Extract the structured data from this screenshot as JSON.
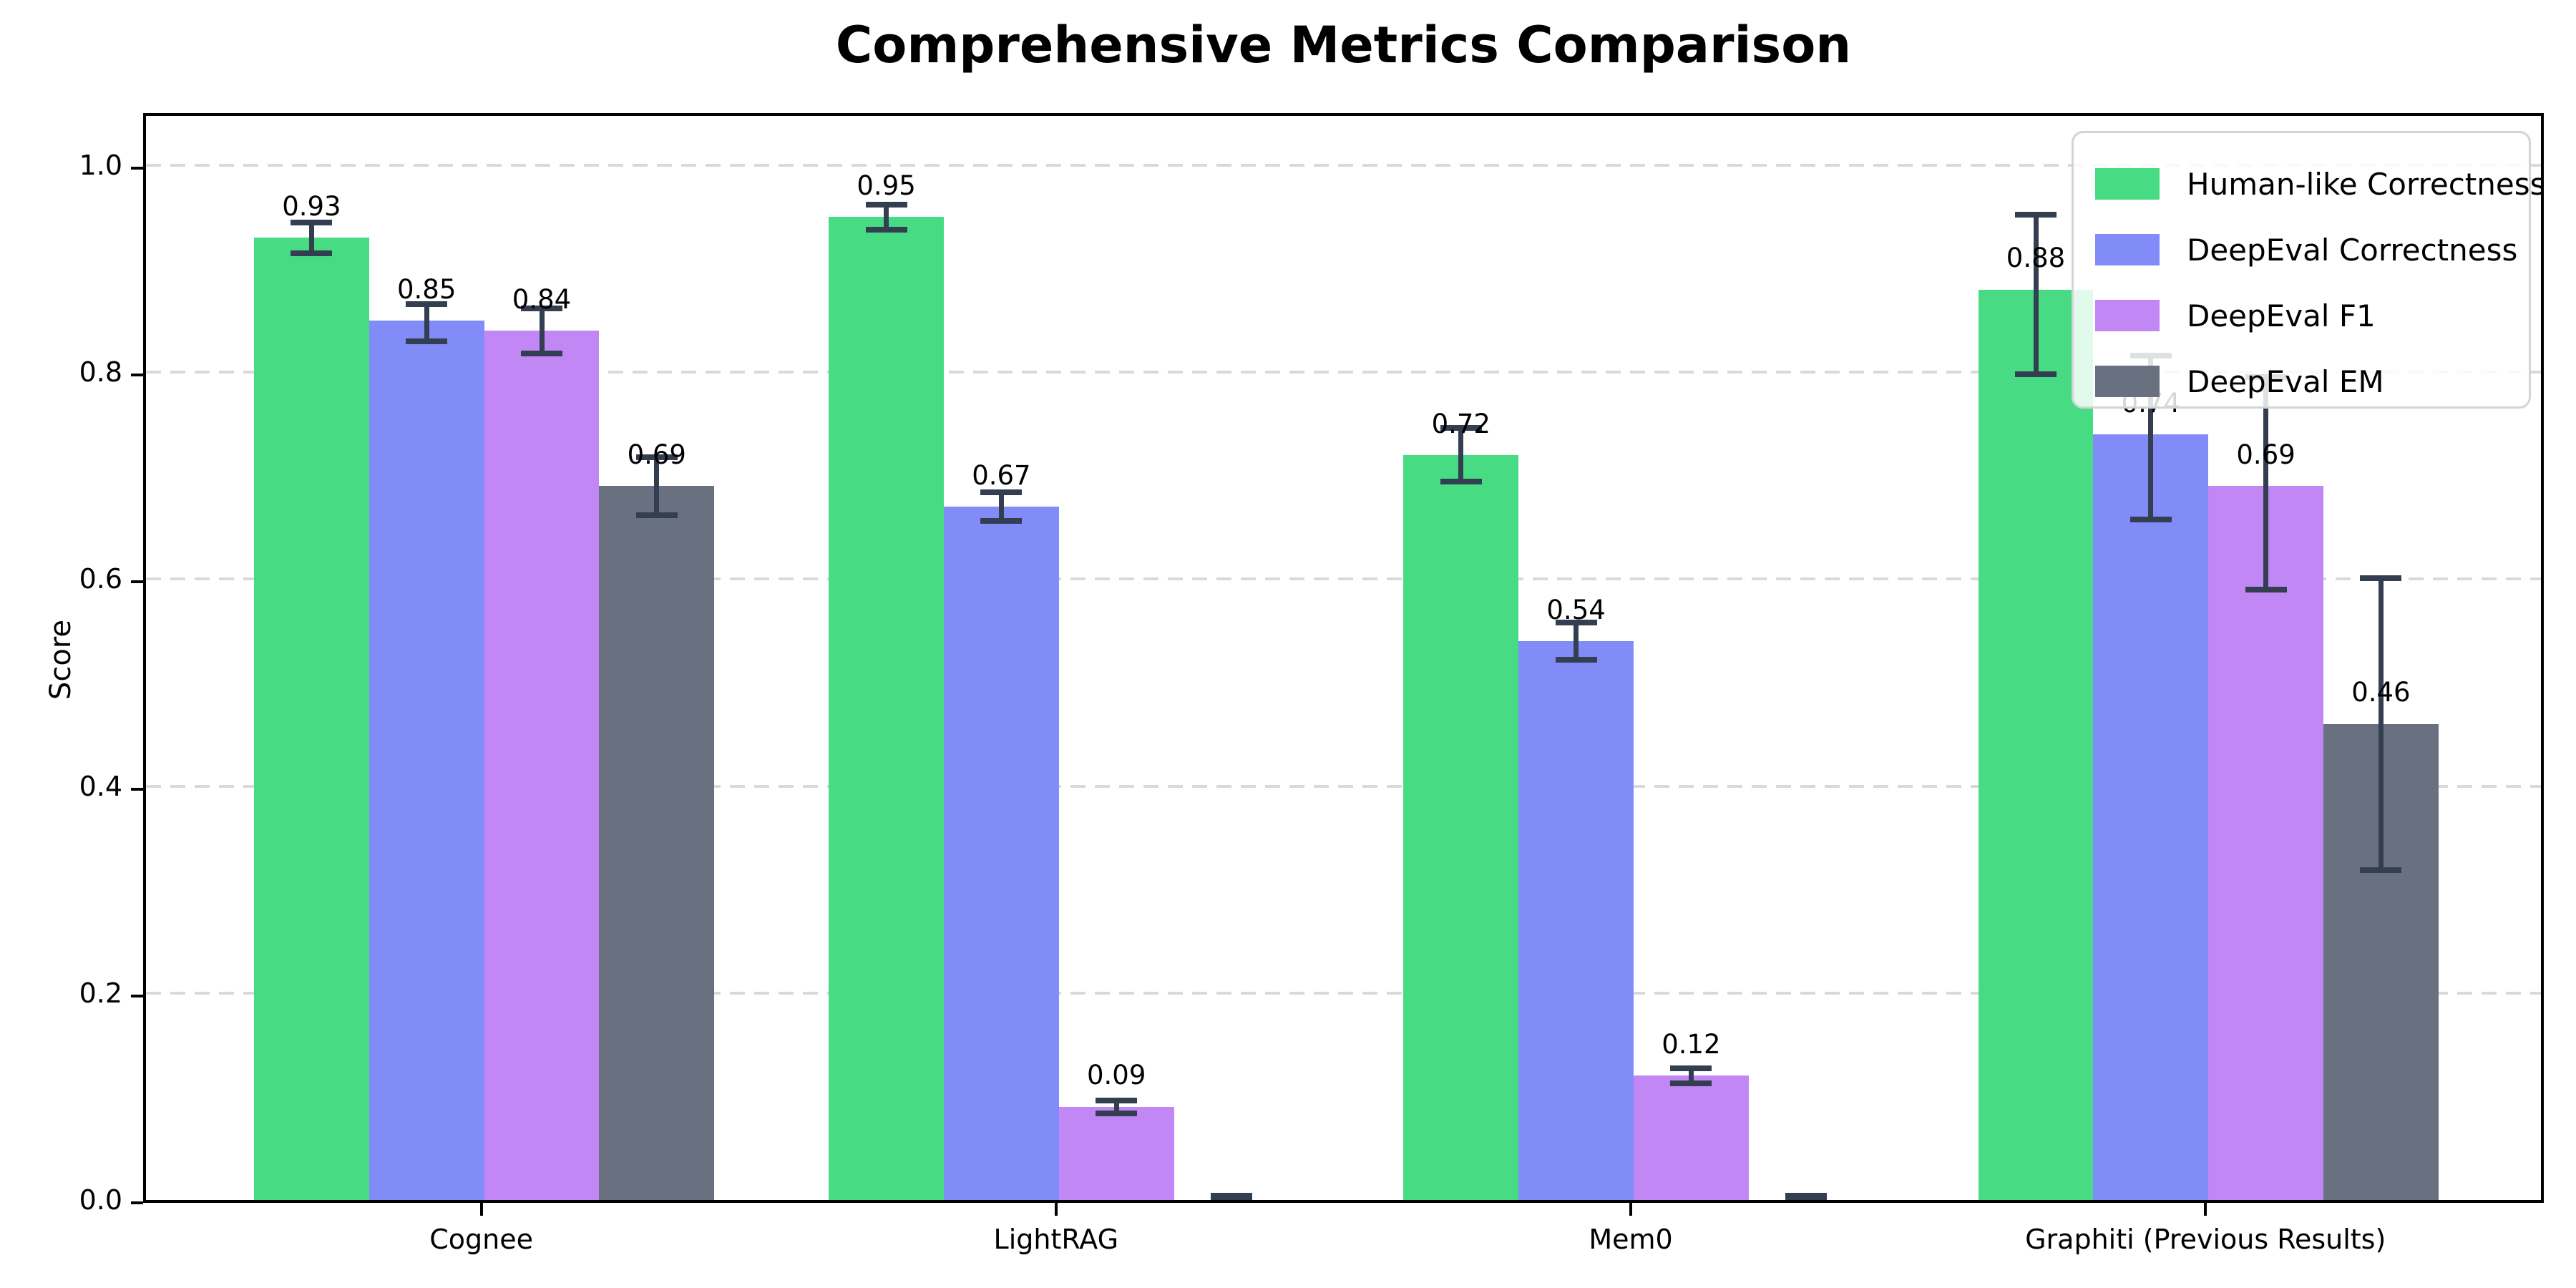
{
  "chart_data": {
    "type": "bar",
    "title": "Comprehensive Metrics Comparison",
    "xlabel": "",
    "ylabel": "Score",
    "categories": [
      "Cognee",
      "LightRAG",
      "Mem0",
      "Graphiti (Previous Results)"
    ],
    "series": [
      {
        "name": "Human-like Correctness",
        "color": "#47dc83",
        "values": [
          0.93,
          0.95,
          0.72,
          0.88
        ],
        "err_down": [
          0.015,
          0.012,
          0.026,
          0.082
        ],
        "err_up": [
          0.015,
          0.012,
          0.026,
          0.072
        ],
        "labels": [
          "0.93",
          "0.95",
          "0.72",
          "0.88"
        ]
      },
      {
        "name": "DeepEval Correctness",
        "color": "#818cf8",
        "values": [
          0.85,
          0.67,
          0.54,
          0.74
        ],
        "err_down": [
          0.02,
          0.014,
          0.018,
          0.082
        ],
        "err_up": [
          0.016,
          0.014,
          0.018,
          0.076
        ],
        "labels": [
          "0.85",
          "0.67",
          "0.54",
          "0.74"
        ]
      },
      {
        "name": "DeepEval F1",
        "color": "#c087f5",
        "values": [
          0.84,
          0.09,
          0.12,
          0.69
        ],
        "err_down": [
          0.022,
          0.006,
          0.007,
          0.1
        ],
        "err_up": [
          0.022,
          0.006,
          0.007,
          0.105
        ],
        "labels": [
          "0.84",
          "0.09",
          "0.12",
          "0.69"
        ]
      },
      {
        "name": "DeepEval EM",
        "color": "#697080",
        "values": [
          0.69,
          0.0,
          0.0,
          0.46
        ],
        "err_down": [
          0.028,
          0.0,
          0.0,
          0.141
        ],
        "err_up": [
          0.028,
          0.004,
          0.004,
          0.141
        ],
        "labels": [
          "0.69",
          null,
          null,
          "0.46"
        ]
      }
    ],
    "ylim": [
      0.0,
      1.053
    ],
    "yticks": [
      0.0,
      0.2,
      0.4,
      0.6,
      0.8,
      1.0
    ],
    "ytick_labels": [
      "0.0",
      "0.2",
      "0.4",
      "0.6",
      "0.8",
      "1.0"
    ],
    "grid": "horizontal-dashed",
    "grid_color": "#d9d9d9",
    "legend_position": "upper-right",
    "error_bar_color": "#333e50",
    "bar_value_label_offset": 0.03
  }
}
